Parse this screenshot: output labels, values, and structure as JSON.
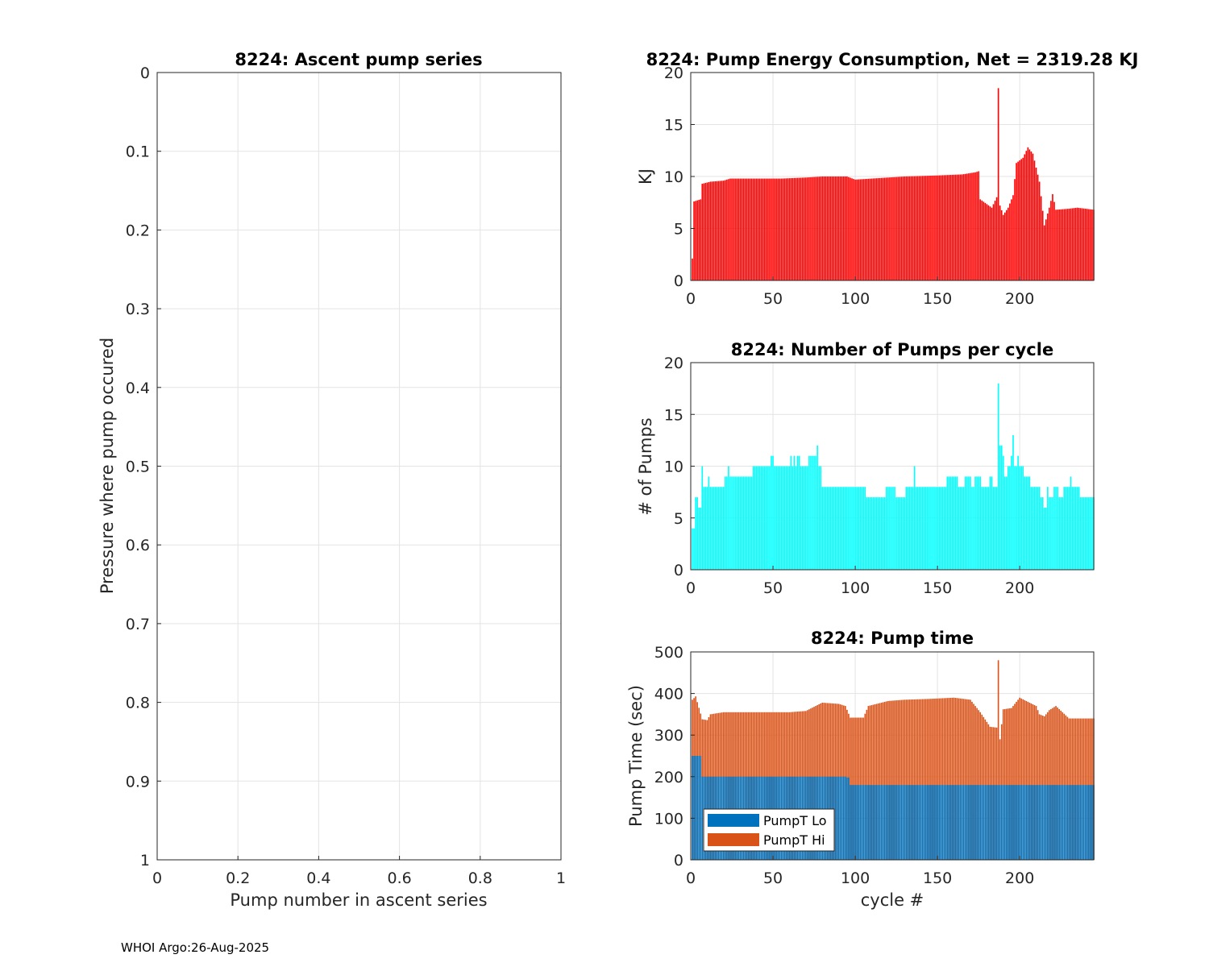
{
  "footer": "WHOI Argo:26-Aug-2025",
  "colors": {
    "energy": "#ff0000",
    "pumps": "#00ffff",
    "lo": "#0072bd",
    "hi": "#d95319"
  },
  "chart_data": [
    {
      "id": "ascent",
      "type": "scatter",
      "title": "8224: Ascent pump series",
      "xlabel": "Pump number in ascent series",
      "ylabel": "Pressure where pump occured",
      "xlim": [
        0,
        1
      ],
      "ylim": [
        0,
        1
      ],
      "y_reversed": true,
      "grid": true,
      "xticks": [
        "0",
        "0.2",
        "0.4",
        "0.6",
        "0.8",
        "1"
      ],
      "yticks": [
        "0",
        "0.1",
        "0.2",
        "0.3",
        "0.4",
        "0.5",
        "0.6",
        "0.7",
        "0.8",
        "0.9",
        "1"
      ],
      "points": []
    },
    {
      "id": "energy",
      "type": "bar",
      "title": "8224: Pump Energy Consumption,  Net = 2319.28 KJ",
      "xlabel": "",
      "ylabel": "KJ",
      "xlim": [
        0,
        245
      ],
      "ylim": [
        0,
        20
      ],
      "grid": true,
      "xticks": [
        "0",
        "50",
        "100",
        "150",
        "200"
      ],
      "yticks": [
        "0",
        "5",
        "10",
        "15",
        "20"
      ],
      "knots": [
        [
          1,
          2.1
        ],
        [
          2,
          7.6
        ],
        [
          6,
          7.8
        ],
        [
          7,
          9.3
        ],
        [
          12,
          9.5
        ],
        [
          20,
          9.6
        ],
        [
          24,
          9.8
        ],
        [
          45,
          9.8
        ],
        [
          55,
          9.8
        ],
        [
          70,
          9.9
        ],
        [
          80,
          10.0
        ],
        [
          95,
          10.0
        ],
        [
          100,
          9.7
        ],
        [
          110,
          9.8
        ],
        [
          120,
          9.9
        ],
        [
          130,
          10.0
        ],
        [
          150,
          10.1
        ],
        [
          165,
          10.2
        ],
        [
          173,
          10.4
        ],
        [
          175,
          10.5
        ],
        [
          176,
          7.8
        ],
        [
          183,
          7.0
        ],
        [
          186,
          8.0
        ],
        [
          187,
          18.5
        ],
        [
          188,
          7.2
        ],
        [
          190,
          6.3
        ],
        [
          193,
          7.0
        ],
        [
          196,
          8.2
        ],
        [
          198,
          11.3
        ],
        [
          202,
          11.8
        ],
        [
          205,
          12.8
        ],
        [
          208,
          12.2
        ],
        [
          212,
          9.5
        ],
        [
          215,
          5.3
        ],
        [
          218,
          7.0
        ],
        [
          220,
          8.3
        ],
        [
          222,
          6.8
        ],
        [
          230,
          6.9
        ],
        [
          235,
          7.0
        ],
        [
          240,
          6.9
        ],
        [
          245,
          6.8
        ]
      ]
    },
    {
      "id": "pumps",
      "type": "bar",
      "title": "8224: Number of Pumps per cycle",
      "xlabel": "",
      "ylabel": "# of Pumps",
      "xlim": [
        0,
        245
      ],
      "ylim": [
        0,
        20
      ],
      "grid": true,
      "xticks": [
        "0",
        "50",
        "100",
        "150",
        "200"
      ],
      "yticks": [
        "0",
        "5",
        "10",
        "15",
        "20"
      ],
      "segments": [
        [
          1,
          2,
          4
        ],
        [
          3,
          4,
          7
        ],
        [
          5,
          6,
          6
        ],
        [
          7,
          7,
          10
        ],
        [
          8,
          10,
          8
        ],
        [
          11,
          11,
          9
        ],
        [
          12,
          20,
          8
        ],
        [
          21,
          22,
          9
        ],
        [
          23,
          23,
          10
        ],
        [
          24,
          37,
          9
        ],
        [
          38,
          38,
          10
        ],
        [
          39,
          48,
          10
        ],
        [
          49,
          50,
          11
        ],
        [
          51,
          60,
          10
        ],
        [
          61,
          61,
          11
        ],
        [
          62,
          62,
          10
        ],
        [
          63,
          63,
          11
        ],
        [
          64,
          64,
          10
        ],
        [
          65,
          66,
          11
        ],
        [
          67,
          71,
          10
        ],
        [
          72,
          76,
          11
        ],
        [
          77,
          77,
          12
        ],
        [
          78,
          79,
          10
        ],
        [
          80,
          105,
          8
        ],
        [
          106,
          106,
          8
        ],
        [
          107,
          118,
          7
        ],
        [
          119,
          124,
          8
        ],
        [
          125,
          130,
          7
        ],
        [
          131,
          135,
          8
        ],
        [
          136,
          136,
          10
        ],
        [
          137,
          140,
          8
        ],
        [
          141,
          155,
          8
        ],
        [
          156,
          162,
          9
        ],
        [
          163,
          166,
          8
        ],
        [
          167,
          170,
          9
        ],
        [
          171,
          172,
          8
        ],
        [
          173,
          176,
          9
        ],
        [
          177,
          181,
          8
        ],
        [
          182,
          183,
          9
        ],
        [
          184,
          185,
          8
        ],
        [
          186,
          186,
          8
        ],
        [
          187,
          187,
          18
        ],
        [
          188,
          189,
          12
        ],
        [
          190,
          190,
          11
        ],
        [
          191,
          192,
          9
        ],
        [
          193,
          194,
          10
        ],
        [
          195,
          195,
          11
        ],
        [
          196,
          196,
          13
        ],
        [
          197,
          198,
          10
        ],
        [
          199,
          199,
          11
        ],
        [
          200,
          202,
          10
        ],
        [
          203,
          206,
          9
        ],
        [
          207,
          208,
          8
        ],
        [
          209,
          212,
          8
        ],
        [
          213,
          214,
          7
        ],
        [
          215,
          216,
          6
        ],
        [
          217,
          217,
          8
        ],
        [
          218,
          220,
          7
        ],
        [
          221,
          223,
          8
        ],
        [
          224,
          226,
          7
        ],
        [
          227,
          230,
          8
        ],
        [
          231,
          231,
          9
        ],
        [
          232,
          236,
          8
        ],
        [
          237,
          245,
          7
        ]
      ]
    },
    {
      "id": "pumptime",
      "type": "bar",
      "stacked": true,
      "title": "8224: Pump time",
      "xlabel": "cycle #",
      "ylabel": "Pump Time (sec)",
      "xlim": [
        0,
        245
      ],
      "ylim": [
        0,
        500
      ],
      "grid": true,
      "xticks": [
        "0",
        "50",
        "100",
        "150",
        "200"
      ],
      "yticks": [
        "0",
        "100",
        "200",
        "300",
        "400",
        "500"
      ],
      "legend": {
        "placement": "bottom-left",
        "entries": [
          "PumpT Lo",
          "PumpT Hi"
        ]
      },
      "series": [
        {
          "name": "PumpT Lo",
          "segments": [
            [
              1,
              6,
              250
            ],
            [
              7,
              94,
              200
            ],
            [
              95,
              96,
              198
            ],
            [
              97,
              245,
              180
            ]
          ]
        },
        {
          "name": "PumpT Hi",
          "total_knots": [
            [
              1,
              385
            ],
            [
              3,
              393
            ],
            [
              7,
              338
            ],
            [
              10,
              336
            ],
            [
              12,
              350
            ],
            [
              20,
              355
            ],
            [
              30,
              355
            ],
            [
              50,
              355
            ],
            [
              60,
              355
            ],
            [
              70,
              358
            ],
            [
              80,
              378
            ],
            [
              90,
              375
            ],
            [
              94,
              370
            ],
            [
              97,
              342
            ],
            [
              105,
              342
            ],
            [
              108,
              370
            ],
            [
              120,
              382
            ],
            [
              130,
              385
            ],
            [
              145,
              387
            ],
            [
              160,
              390
            ],
            [
              170,
              385
            ],
            [
              176,
              355
            ],
            [
              182,
              320
            ],
            [
              186,
              318
            ],
            [
              187,
              480
            ],
            [
              188,
              290
            ],
            [
              190,
              362
            ],
            [
              195,
              365
            ],
            [
              200,
              390
            ],
            [
              205,
              380
            ],
            [
              210,
              370
            ],
            [
              212,
              350
            ],
            [
              215,
              345
            ],
            [
              218,
              360
            ],
            [
              222,
              370
            ],
            [
              230,
              340
            ],
            [
              240,
              340
            ],
            [
              245,
              340
            ]
          ]
        }
      ]
    }
  ]
}
